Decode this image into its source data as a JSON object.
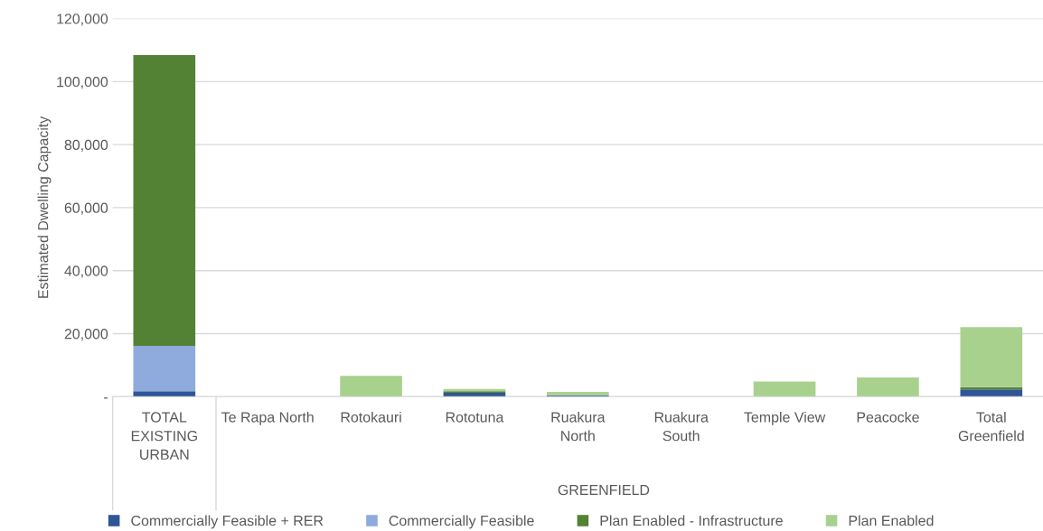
{
  "chart_data": {
    "type": "bar",
    "stacked": true,
    "ylabel": "Estimated Dwelling Capacity",
    "categories": [
      "TOTAL\nEXISTING\nURBAN",
      "Te Rapa North",
      "Rotokauri",
      "Rototuna",
      "Ruakura\nNorth",
      "Ruakura\nSouth",
      "Temple View",
      "Peacocke",
      "Total\nGreenfield"
    ],
    "series": [
      {
        "name": "Commercially Feasible + RER",
        "color": "#2f5597",
        "values": [
          1700,
          0,
          0,
          1200,
          400,
          0,
          0,
          0,
          2300
        ]
      },
      {
        "name": "Commercially Feasible",
        "color": "#8faadc",
        "values": [
          14400,
          0,
          0,
          0,
          0,
          0,
          0,
          0,
          0
        ]
      },
      {
        "name": "Plan Enabled - Infrastructure",
        "color": "#548235",
        "values": [
          92300,
          0,
          0,
          500,
          0,
          0,
          0,
          0,
          700
        ]
      },
      {
        "name": "Plan Enabled",
        "color": "#a9d18e",
        "values": [
          0,
          0,
          6600,
          700,
          1100,
          0,
          4800,
          6100,
          19100
        ]
      }
    ],
    "ylim": [
      0,
      120000
    ],
    "yticks": [
      {
        "value": 0,
        "label": "-"
      },
      {
        "value": 20000,
        "label": "20,000"
      },
      {
        "value": 40000,
        "label": "40,000"
      },
      {
        "value": 60000,
        "label": "60,000"
      },
      {
        "value": 80000,
        "label": "80,000"
      },
      {
        "value": 100000,
        "label": "100,000"
      },
      {
        "value": 120000,
        "label": "120,000"
      }
    ],
    "annotations": [
      "GREENFIELD"
    ],
    "grid": "y",
    "legend": "bottom"
  }
}
